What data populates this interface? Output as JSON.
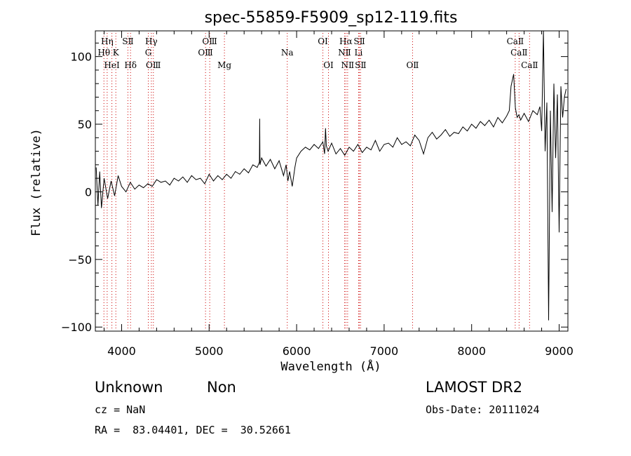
{
  "chart_data": {
    "type": "line",
    "title": "spec-55859-F5909_sp12-119.fits",
    "xlabel": "Wavelength (Å)",
    "ylabel": "Flux (relative)",
    "xlim": [
      3700,
      9100
    ],
    "ylim": [
      -103,
      119
    ],
    "xticks": [
      4000,
      5000,
      6000,
      7000,
      8000,
      9000
    ],
    "yticks": [
      -100,
      -50,
      0,
      50,
      100
    ],
    "ytick_labels": [
      "−100",
      "−50",
      "0",
      "50",
      "100"
    ],
    "grid": false,
    "series": [
      {
        "color": "#000000",
        "x": [
          3710,
          3730,
          3750,
          3770,
          3800,
          3840,
          3880,
          3920,
          3960,
          4000,
          4050,
          4100,
          4150,
          4200,
          4250,
          4300,
          4350,
          4400,
          4450,
          4500,
          4550,
          4600,
          4650,
          4700,
          4750,
          4800,
          4850,
          4900,
          4950,
          5000,
          5050,
          5100,
          5150,
          5200,
          5250,
          5300,
          5350,
          5400,
          5450,
          5500,
          5550,
          5575,
          5578,
          5581,
          5600,
          5650,
          5700,
          5750,
          5800,
          5850,
          5880,
          5900,
          5920,
          5950,
          5980,
          6000,
          6050,
          6100,
          6150,
          6200,
          6250,
          6300,
          6320,
          6330,
          6340,
          6360,
          6400,
          6450,
          6500,
          6550,
          6600,
          6650,
          6700,
          6750,
          6800,
          6850,
          6900,
          6950,
          7000,
          7050,
          7100,
          7150,
          7200,
          7250,
          7300,
          7350,
          7400,
          7450,
          7500,
          7550,
          7600,
          7650,
          7700,
          7750,
          7800,
          7850,
          7900,
          7950,
          8000,
          8050,
          8100,
          8150,
          8200,
          8250,
          8300,
          8350,
          8400,
          8430,
          8450,
          8480,
          8500,
          8520,
          8540,
          8560,
          8600,
          8650,
          8700,
          8750,
          8780,
          8800,
          8820,
          8840,
          8860,
          8880,
          8900,
          8920,
          8940,
          8960,
          8980,
          9000,
          9020,
          9040,
          9060,
          9080
        ],
        "y": [
          18,
          -10,
          15,
          -12,
          10,
          -5,
          8,
          -3,
          12,
          4,
          0,
          7,
          2,
          5,
          3,
          6,
          4,
          9,
          7,
          8,
          5,
          10,
          8,
          11,
          7,
          12,
          9,
          10,
          6,
          13,
          8,
          12,
          9,
          13,
          10,
          15,
          13,
          17,
          14,
          20,
          18,
          22,
          54,
          20,
          25,
          19,
          24,
          17,
          23,
          12,
          20,
          8,
          15,
          4,
          18,
          25,
          30,
          33,
          31,
          35,
          32,
          37,
          28,
          47,
          34,
          30,
          36,
          28,
          32,
          27,
          33,
          30,
          35,
          29,
          33,
          31,
          38,
          30,
          35,
          36,
          33,
          40,
          35,
          37,
          34,
          42,
          38,
          28,
          40,
          44,
          39,
          42,
          46,
          41,
          44,
          43,
          48,
          45,
          50,
          47,
          52,
          49,
          53,
          48,
          55,
          51,
          56,
          60,
          78,
          87,
          62,
          55,
          57,
          53,
          58,
          52,
          60,
          57,
          63,
          45,
          119,
          30,
          66,
          -95,
          60,
          -15,
          80,
          25,
          72,
          -30,
          78,
          55,
          70,
          76
        ]
      }
    ],
    "lines": [
      {
        "label": "Hη",
        "wl": 3835,
        "row": 0
      },
      {
        "label": "SⅡ",
        "wl": 4072,
        "row": 0
      },
      {
        "label": "Hγ",
        "wl": 4340,
        "row": 0
      },
      {
        "label": "OⅢ",
        "wl": 5007,
        "row": 0
      },
      {
        "label": "OⅠ",
        "wl": 6300,
        "row": 0
      },
      {
        "label": "Hα",
        "wl": 6563,
        "row": 0
      },
      {
        "label": "SⅡ",
        "wl": 6717,
        "row": 0
      },
      {
        "label": "CaⅡ",
        "wl": 8498,
        "row": 0
      },
      {
        "label": "Hθ",
        "wl": 3798,
        "row": 1
      },
      {
        "label": "K",
        "wl": 3934,
        "row": 1
      },
      {
        "label": "G",
        "wl": 4305,
        "row": 1
      },
      {
        "label": "OⅢ",
        "wl": 4959,
        "row": 1
      },
      {
        "label": "Na",
        "wl": 5893,
        "row": 1
      },
      {
        "label": "NⅡ",
        "wl": 6548,
        "row": 1
      },
      {
        "label": "Li",
        "wl": 6708,
        "row": 1
      },
      {
        "label": "CaⅡ",
        "wl": 8542,
        "row": 1
      },
      {
        "label": "HeⅠ",
        "wl": 3889,
        "row": 2
      },
      {
        "label": "Hδ",
        "wl": 4102,
        "row": 2
      },
      {
        "label": "OⅢ",
        "wl": 4363,
        "row": 2
      },
      {
        "label": "Mg",
        "wl": 5175,
        "row": 2
      },
      {
        "label": "OⅠ",
        "wl": 6364,
        "row": 2
      },
      {
        "label": "NⅡ",
        "wl": 6583,
        "row": 2
      },
      {
        "label": "SⅡ",
        "wl": 6731,
        "row": 2
      },
      {
        "label": "OⅡ",
        "wl": 7325,
        "row": 2
      },
      {
        "label": "CaⅡ",
        "wl": 8662,
        "row": 2
      }
    ],
    "dotted_line_color": "#cc0000"
  },
  "info": {
    "class": "Unknown",
    "subclass": "Non",
    "survey": "LAMOST DR2",
    "cz": "cz = NaN",
    "obs_date": "Obs-Date: 20111024",
    "coords": "RA =  83.04401, DEC =  30.52661"
  }
}
